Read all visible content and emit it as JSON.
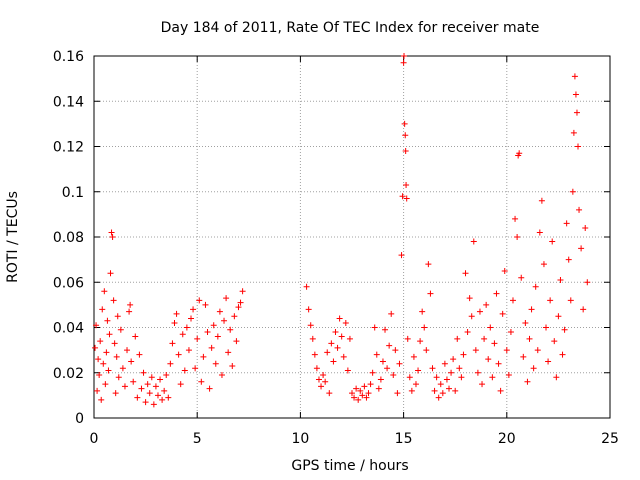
{
  "chart_data": {
    "type": "scatter",
    "title": "Day 184 of 2011, Rate Of TEC Index for receiver mate",
    "xlabel": "GPS time / hours",
    "ylabel": "ROTI / TECUs",
    "xlim": [
      0,
      25
    ],
    "ylim": [
      0,
      0.16
    ],
    "x_ticks": [
      "0",
      "5",
      "10",
      "15",
      "20",
      "25"
    ],
    "y_ticks": [
      "0",
      "0.02",
      "0.04",
      "0.06",
      "0.08",
      "0.1",
      "0.12",
      "0.14",
      "0.16"
    ],
    "grid": true,
    "marker": "+",
    "color": "#ff0000",
    "series": [
      {
        "points": [
          [
            0.05,
            0.031
          ],
          [
            0.1,
            0.041
          ],
          [
            0.15,
            0.012
          ],
          [
            0.2,
            0.026
          ],
          [
            0.25,
            0.019
          ],
          [
            0.3,
            0.034
          ],
          [
            0.35,
            0.008
          ],
          [
            0.4,
            0.048
          ],
          [
            0.45,
            0.024
          ],
          [
            0.5,
            0.056
          ],
          [
            0.55,
            0.015
          ],
          [
            0.6,
            0.029
          ],
          [
            0.65,
            0.043
          ],
          [
            0.7,
            0.021
          ],
          [
            0.75,
            0.037
          ],
          [
            0.8,
            0.064
          ],
          [
            0.85,
            0.082
          ],
          [
            0.9,
            0.08
          ],
          [
            0.95,
            0.052
          ],
          [
            1.0,
            0.033
          ],
          [
            1.05,
            0.011
          ],
          [
            1.1,
            0.027
          ],
          [
            1.15,
            0.045
          ],
          [
            1.2,
            0.018
          ],
          [
            1.3,
            0.039
          ],
          [
            1.4,
            0.022
          ],
          [
            1.5,
            0.014
          ],
          [
            1.6,
            0.03
          ],
          [
            1.7,
            0.047
          ],
          [
            1.75,
            0.05
          ],
          [
            1.8,
            0.025
          ],
          [
            1.9,
            0.016
          ],
          [
            2.0,
            0.036
          ],
          [
            2.1,
            0.009
          ],
          [
            2.2,
            0.028
          ],
          [
            2.3,
            0.013
          ],
          [
            2.4,
            0.02
          ],
          [
            2.5,
            0.007
          ],
          [
            2.6,
            0.015
          ],
          [
            2.7,
            0.011
          ],
          [
            2.8,
            0.018
          ],
          [
            2.9,
            0.006
          ],
          [
            3.0,
            0.014
          ],
          [
            3.1,
            0.01
          ],
          [
            3.2,
            0.017
          ],
          [
            3.3,
            0.008
          ],
          [
            3.4,
            0.012
          ],
          [
            3.5,
            0.019
          ],
          [
            3.6,
            0.009
          ],
          [
            3.7,
            0.024
          ],
          [
            3.8,
            0.033
          ],
          [
            3.9,
            0.042
          ],
          [
            4.0,
            0.046
          ],
          [
            4.1,
            0.028
          ],
          [
            4.2,
            0.015
          ],
          [
            4.3,
            0.037
          ],
          [
            4.4,
            0.021
          ],
          [
            4.5,
            0.04
          ],
          [
            4.6,
            0.03
          ],
          [
            4.7,
            0.044
          ],
          [
            4.8,
            0.048
          ],
          [
            4.9,
            0.022
          ],
          [
            5.0,
            0.035
          ],
          [
            5.1,
            0.052
          ],
          [
            5.2,
            0.016
          ],
          [
            5.3,
            0.027
          ],
          [
            5.4,
            0.05
          ],
          [
            5.5,
            0.038
          ],
          [
            5.6,
            0.013
          ],
          [
            5.7,
            0.031
          ],
          [
            5.8,
            0.041
          ],
          [
            5.9,
            0.024
          ],
          [
            6.0,
            0.036
          ],
          [
            6.1,
            0.047
          ],
          [
            6.2,
            0.019
          ],
          [
            6.3,
            0.043
          ],
          [
            6.4,
            0.053
          ],
          [
            6.5,
            0.029
          ],
          [
            6.6,
            0.039
          ],
          [
            6.7,
            0.023
          ],
          [
            6.8,
            0.045
          ],
          [
            6.9,
            0.034
          ],
          [
            7.0,
            0.049
          ],
          [
            7.1,
            0.051
          ],
          [
            7.2,
            0.056
          ],
          [
            10.3,
            0.058
          ],
          [
            10.4,
            0.048
          ],
          [
            10.5,
            0.041
          ],
          [
            10.6,
            0.035
          ],
          [
            10.7,
            0.028
          ],
          [
            10.8,
            0.022
          ],
          [
            10.9,
            0.017
          ],
          [
            11.0,
            0.014
          ],
          [
            11.1,
            0.019
          ],
          [
            11.2,
            0.016
          ],
          [
            11.3,
            0.029
          ],
          [
            11.4,
            0.011
          ],
          [
            11.5,
            0.033
          ],
          [
            11.6,
            0.025
          ],
          [
            11.7,
            0.038
          ],
          [
            11.8,
            0.031
          ],
          [
            11.9,
            0.044
          ],
          [
            12.0,
            0.036
          ],
          [
            12.1,
            0.027
          ],
          [
            12.2,
            0.042
          ],
          [
            12.3,
            0.021
          ],
          [
            12.4,
            0.035
          ],
          [
            12.5,
            0.011
          ],
          [
            12.6,
            0.009
          ],
          [
            12.7,
            0.013
          ],
          [
            12.8,
            0.008
          ],
          [
            12.9,
            0.012
          ],
          [
            13.0,
            0.01
          ],
          [
            13.1,
            0.014
          ],
          [
            13.2,
            0.009
          ],
          [
            13.3,
            0.011
          ],
          [
            13.4,
            0.015
          ],
          [
            13.5,
            0.02
          ],
          [
            13.6,
            0.04
          ],
          [
            13.7,
            0.028
          ],
          [
            13.8,
            0.013
          ],
          [
            13.9,
            0.017
          ],
          [
            14.0,
            0.025
          ],
          [
            14.1,
            0.039
          ],
          [
            14.2,
            0.022
          ],
          [
            14.3,
            0.032
          ],
          [
            14.4,
            0.046
          ],
          [
            14.5,
            0.019
          ],
          [
            14.6,
            0.03
          ],
          [
            14.7,
            0.011
          ],
          [
            14.8,
            0.024
          ],
          [
            14.9,
            0.072
          ],
          [
            14.95,
            0.098
          ],
          [
            15.0,
            0.157
          ],
          [
            15.02,
            0.16
          ],
          [
            15.05,
            0.13
          ],
          [
            15.08,
            0.125
          ],
          [
            15.1,
            0.118
          ],
          [
            15.12,
            0.103
          ],
          [
            15.15,
            0.097
          ],
          [
            15.2,
            0.035
          ],
          [
            15.3,
            0.018
          ],
          [
            15.4,
            0.012
          ],
          [
            15.5,
            0.027
          ],
          [
            15.6,
            0.015
          ],
          [
            15.7,
            0.021
          ],
          [
            15.8,
            0.034
          ],
          [
            15.9,
            0.047
          ],
          [
            16.0,
            0.04
          ],
          [
            16.1,
            0.03
          ],
          [
            16.2,
            0.068
          ],
          [
            16.3,
            0.055
          ],
          [
            16.4,
            0.022
          ],
          [
            16.5,
            0.012
          ],
          [
            16.6,
            0.018
          ],
          [
            16.7,
            0.009
          ],
          [
            16.8,
            0.015
          ],
          [
            16.9,
            0.011
          ],
          [
            17.0,
            0.024
          ],
          [
            17.1,
            0.017
          ],
          [
            17.2,
            0.013
          ],
          [
            17.3,
            0.02
          ],
          [
            17.4,
            0.026
          ],
          [
            17.5,
            0.012
          ],
          [
            17.6,
            0.035
          ],
          [
            17.7,
            0.022
          ],
          [
            17.8,
            0.018
          ],
          [
            17.9,
            0.028
          ],
          [
            18.0,
            0.064
          ],
          [
            18.1,
            0.038
          ],
          [
            18.2,
            0.053
          ],
          [
            18.3,
            0.045
          ],
          [
            18.4,
            0.078
          ],
          [
            18.5,
            0.03
          ],
          [
            18.6,
            0.02
          ],
          [
            18.7,
            0.047
          ],
          [
            18.8,
            0.015
          ],
          [
            18.9,
            0.035
          ],
          [
            19.0,
            0.05
          ],
          [
            19.1,
            0.026
          ],
          [
            19.2,
            0.04
          ],
          [
            19.3,
            0.018
          ],
          [
            19.4,
            0.033
          ],
          [
            19.5,
            0.055
          ],
          [
            19.6,
            0.024
          ],
          [
            19.7,
            0.012
          ],
          [
            19.8,
            0.046
          ],
          [
            19.9,
            0.065
          ],
          [
            20.0,
            0.03
          ],
          [
            20.1,
            0.019
          ],
          [
            20.2,
            0.038
          ],
          [
            20.3,
            0.052
          ],
          [
            20.4,
            0.088
          ],
          [
            20.5,
            0.08
          ],
          [
            20.55,
            0.116
          ],
          [
            20.6,
            0.117
          ],
          [
            20.7,
            0.062
          ],
          [
            20.8,
            0.027
          ],
          [
            20.9,
            0.042
          ],
          [
            21.0,
            0.016
          ],
          [
            21.1,
            0.035
          ],
          [
            21.2,
            0.048
          ],
          [
            21.3,
            0.022
          ],
          [
            21.4,
            0.058
          ],
          [
            21.5,
            0.03
          ],
          [
            21.6,
            0.082
          ],
          [
            21.7,
            0.096
          ],
          [
            21.8,
            0.068
          ],
          [
            21.9,
            0.04
          ],
          [
            22.0,
            0.025
          ],
          [
            22.1,
            0.052
          ],
          [
            22.2,
            0.078
          ],
          [
            22.3,
            0.034
          ],
          [
            22.4,
            0.018
          ],
          [
            22.5,
            0.045
          ],
          [
            22.6,
            0.061
          ],
          [
            22.7,
            0.028
          ],
          [
            22.8,
            0.039
          ],
          [
            22.9,
            0.086
          ],
          [
            23.0,
            0.07
          ],
          [
            23.1,
            0.052
          ],
          [
            23.2,
            0.1
          ],
          [
            23.25,
            0.126
          ],
          [
            23.3,
            0.151
          ],
          [
            23.35,
            0.143
          ],
          [
            23.4,
            0.135
          ],
          [
            23.45,
            0.12
          ],
          [
            23.5,
            0.092
          ],
          [
            23.6,
            0.075
          ],
          [
            23.7,
            0.048
          ],
          [
            23.8,
            0.084
          ],
          [
            23.9,
            0.06
          ]
        ]
      }
    ]
  }
}
